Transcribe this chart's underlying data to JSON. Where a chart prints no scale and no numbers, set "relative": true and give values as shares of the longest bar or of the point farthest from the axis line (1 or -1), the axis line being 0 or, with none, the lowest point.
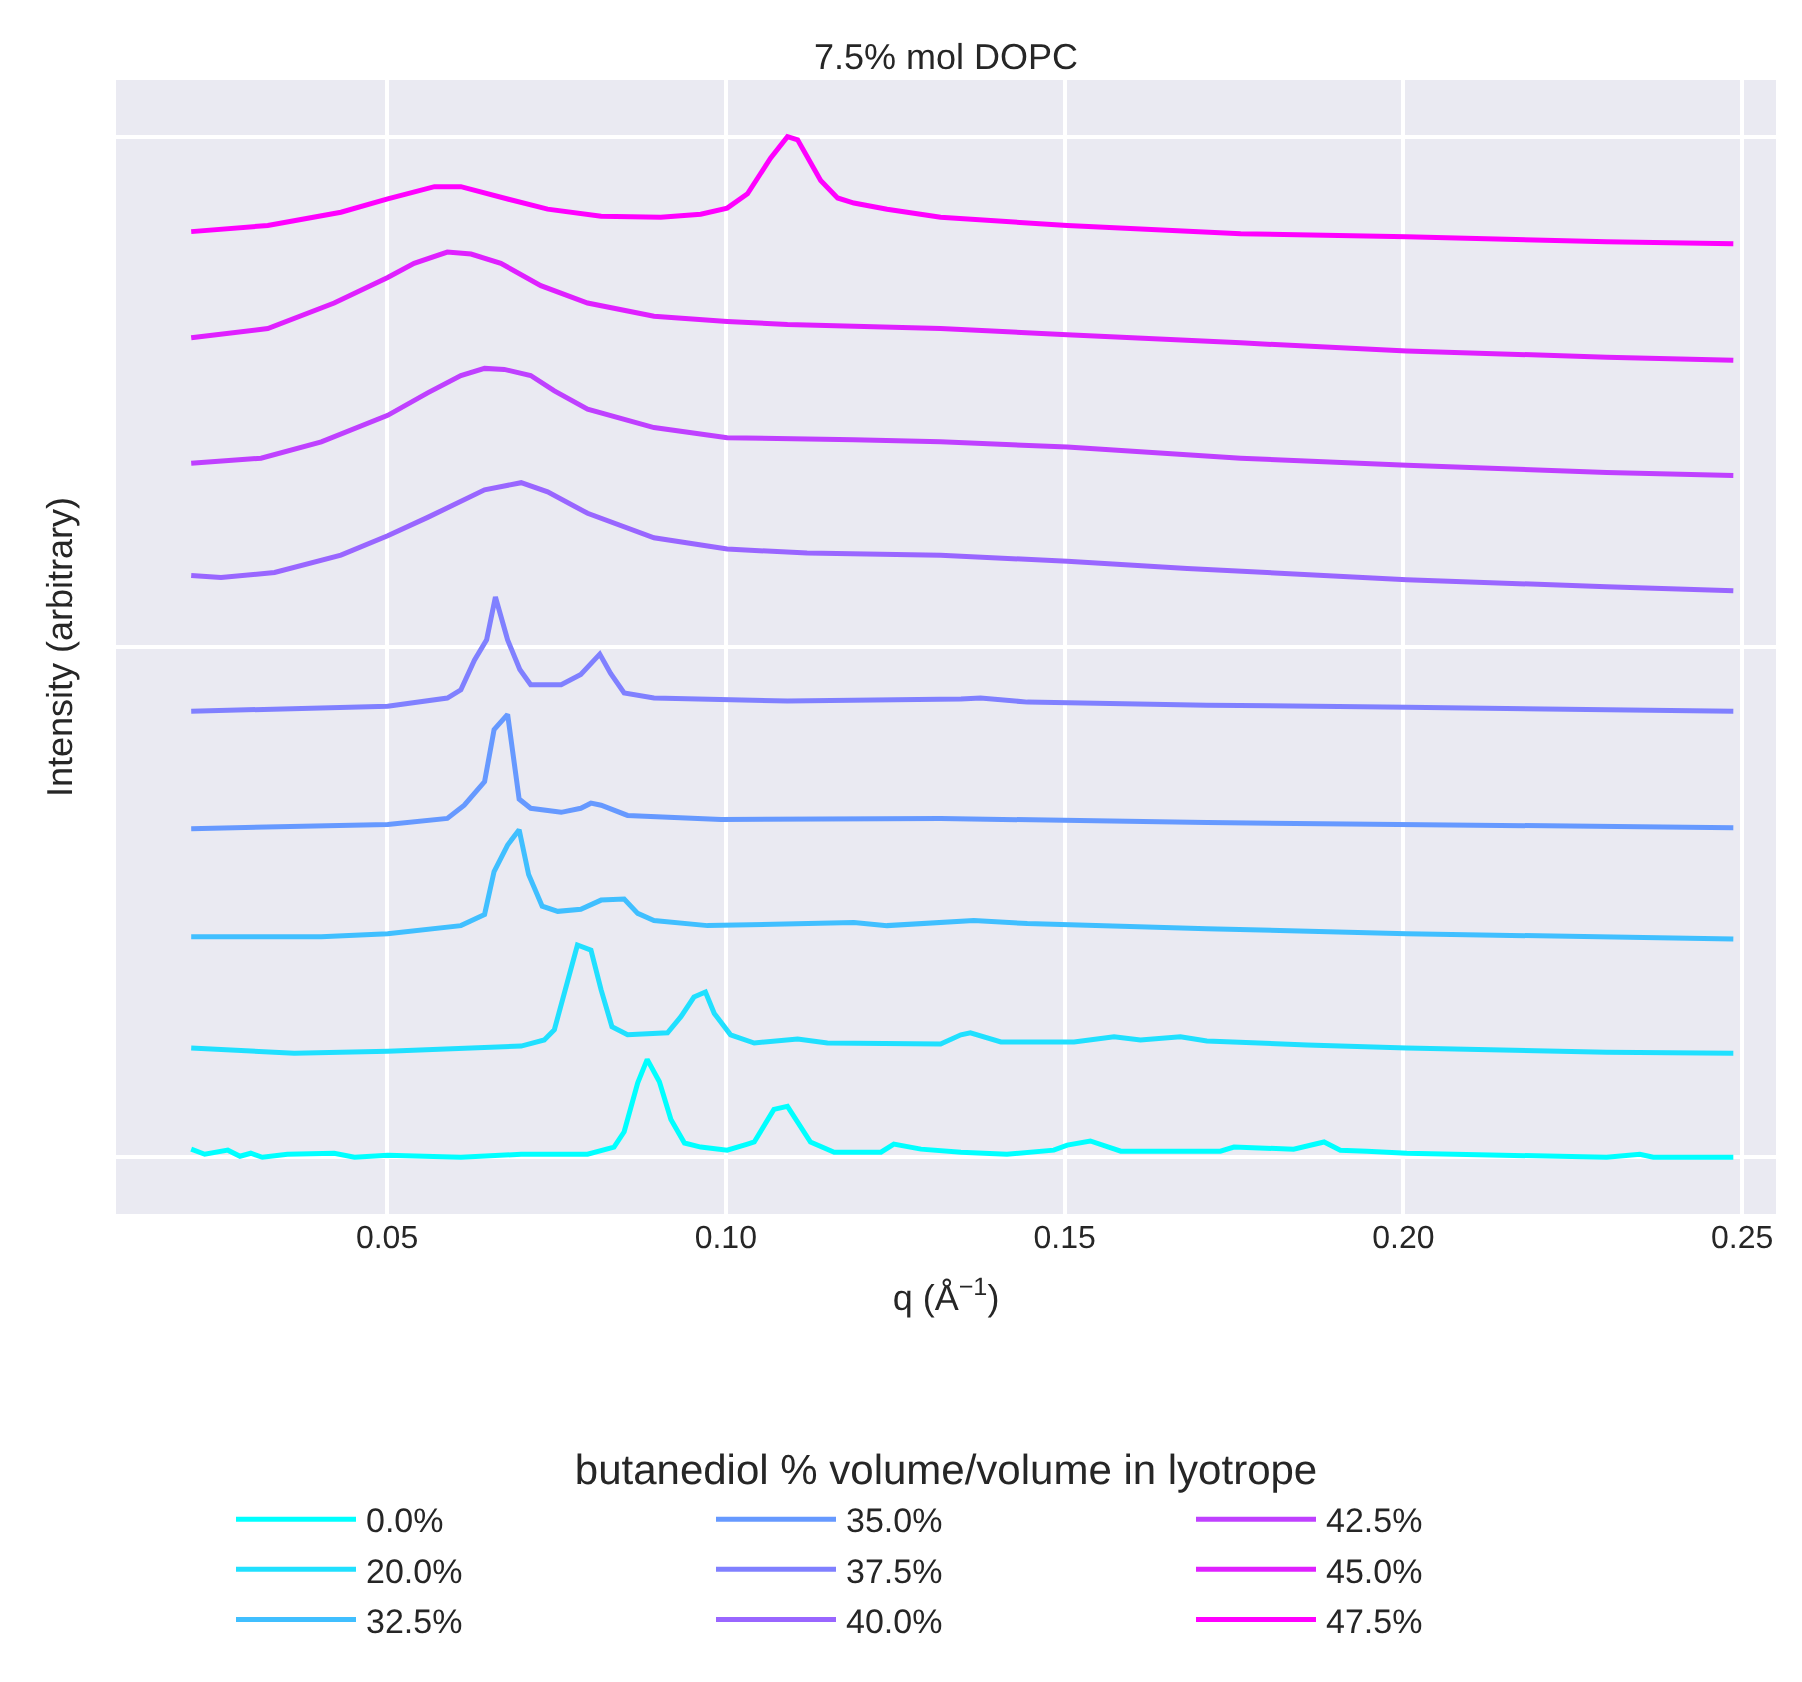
{
  "chart_data": {
    "type": "line",
    "title": "7.5% mol DOPC",
    "xlabel": "q (Å$^{−1}$)",
    "ylabel": "Intensity (arbitrary)",
    "legend_title": "butanediol % volume/volume in lyotrope",
    "relative": true,
    "xlim": [
      0.01,
      0.255
    ],
    "xticks": [
      0.05,
      {
        "value": 0.1,
        "label": "0.10"
      },
      0.15,
      {
        "value": 0.2,
        "label": "0.20"
      },
      0.25
    ],
    "grid": true,
    "legend": "bottom",
    "line_style": "solid",
    "marker": "none",
    "series": [
      {
        "name": "0.0%",
        "color": "#00ffff",
        "x": [
          0.0211,
          0.0231,
          0.0265,
          0.0283,
          0.0299,
          0.0316,
          0.0353,
          0.0422,
          0.0452,
          0.0501,
          0.0609,
          0.0698,
          0.0796,
          0.0835,
          0.085,
          0.087,
          0.0884,
          0.0902,
          0.0919,
          0.0939,
          0.0963,
          0.1002,
          0.1032,
          0.1042,
          0.1071,
          0.1091,
          0.1125,
          0.116,
          0.1229,
          0.1248,
          0.1288,
          0.1347,
          0.1415,
          0.1484,
          0.1504,
          0.1538,
          0.1583,
          0.173,
          0.175,
          0.1838,
          0.1883,
          0.1907,
          0.1946,
          0.2005,
          0.23,
          0.2349,
          0.2369,
          0.2487
        ],
        "values": [
          0.008,
          0.003,
          0.007,
          0.001,
          0.004,
          0,
          0.003,
          0.004,
          0,
          0.002,
          0,
          0.003,
          0.003,
          0.01,
          0.025,
          0.073,
          0.096,
          0.074,
          0.037,
          0.014,
          0.01,
          0.007,
          0.013,
          0.015,
          0.047,
          0.05,
          0.015,
          0.005,
          0.005,
          0.013,
          0.008,
          0.005,
          0.003,
          0.007,
          0.012,
          0.016,
          0.006,
          0.006,
          0.01,
          0.008,
          0.015,
          0.007,
          0.006,
          0.004,
          0,
          0.003,
          0,
          0
        ]
      },
      {
        "name": "20.0%",
        "color": "#20e0ff",
        "x": [
          0.0211,
          0.0363,
          0.0501,
          0.0698,
          0.0732,
          0.0747,
          0.0781,
          0.0801,
          0.0816,
          0.0832,
          0.0855,
          0.0914,
          0.0934,
          0.0953,
          0.097,
          0.0983,
          0.1007,
          0.1042,
          0.1106,
          0.115,
          0.1317,
          0.1347,
          0.1361,
          0.1406,
          0.1514,
          0.1573,
          0.1612,
          0.1671,
          0.171,
          0.1858,
          0.2005,
          0.23,
          0.2487
        ],
        "values": [
          0.107,
          0.102,
          0.104,
          0.109,
          0.115,
          0.125,
          0.208,
          0.203,
          0.164,
          0.128,
          0.12,
          0.122,
          0.138,
          0.157,
          0.162,
          0.141,
          0.12,
          0.112,
          0.116,
          0.112,
          0.111,
          0.12,
          0.122,
          0.113,
          0.113,
          0.118,
          0.115,
          0.118,
          0.114,
          0.11,
          0.107,
          0.103,
          0.102
        ]
      },
      {
        "name": "32.5%",
        "color": "#40bfff",
        "x": [
          0.0211,
          0.0403,
          0.0501,
          0.0609,
          0.0644,
          0.0658,
          0.0678,
          0.0695,
          0.0709,
          0.0729,
          0.0752,
          0.0786,
          0.0816,
          0.085,
          0.087,
          0.0894,
          0.0973,
          0.1189,
          0.1238,
          0.1366,
          0.1445,
          0.171,
          0.2005,
          0.2487
        ],
        "values": [
          0.216,
          0.216,
          0.219,
          0.227,
          0.238,
          0.28,
          0.306,
          0.321,
          0.277,
          0.246,
          0.241,
          0.243,
          0.252,
          0.253,
          0.239,
          0.232,
          0.227,
          0.23,
          0.227,
          0.232,
          0.229,
          0.224,
          0.219,
          0.214
        ]
      },
      {
        "name": "35.0%",
        "color": "#6699ff",
        "x": [
          0.0211,
          0.0501,
          0.0589,
          0.0614,
          0.0644,
          0.0658,
          0.0678,
          0.0695,
          0.0712,
          0.0757,
          0.0786,
          0.0801,
          0.0816,
          0.0855,
          0.0993,
          0.1317,
          0.171,
          0.2487
        ],
        "values": [
          0.322,
          0.326,
          0.332,
          0.345,
          0.368,
          0.419,
          0.434,
          0.351,
          0.342,
          0.338,
          0.342,
          0.347,
          0.345,
          0.335,
          0.331,
          0.332,
          0.328,
          0.323
        ]
      },
      {
        "name": "37.5%",
        "color": "#8080ff",
        "x": [
          0.0211,
          0.0501,
          0.0589,
          0.0609,
          0.0629,
          0.0647,
          0.066,
          0.0678,
          0.0696,
          0.0712,
          0.0757,
          0.0786,
          0.0814,
          0.083,
          0.085,
          0.0894,
          0.1091,
          0.1347,
          0.1376,
          0.1445,
          0.171,
          0.2005,
          0.2487
        ],
        "values": [
          0.437,
          0.442,
          0.45,
          0.458,
          0.487,
          0.507,
          0.549,
          0.507,
          0.478,
          0.463,
          0.463,
          0.473,
          0.493,
          0.474,
          0.455,
          0.45,
          0.447,
          0.449,
          0.45,
          0.446,
          0.443,
          0.441,
          0.437
        ]
      },
      {
        "name": "40.0%",
        "color": "#9966ff",
        "x": [
          0.0211,
          0.0255,
          0.0334,
          0.0432,
          0.0501,
          0.056,
          0.0644,
          0.0698,
          0.0737,
          0.0796,
          0.0894,
          0.1002,
          0.112,
          0.1317,
          0.1504,
          0.1681,
          0.2005,
          0.23,
          0.2487
        ],
        "values": [
          0.57,
          0.568,
          0.573,
          0.59,
          0.609,
          0.627,
          0.654,
          0.661,
          0.652,
          0.631,
          0.607,
          0.596,
          0.592,
          0.59,
          0.584,
          0.577,
          0.566,
          0.559,
          0.555
        ]
      },
      {
        "name": "42.5%",
        "color": "#bf40ff",
        "x": [
          0.0211,
          0.0314,
          0.0403,
          0.0501,
          0.056,
          0.0609,
          0.0644,
          0.0673,
          0.0712,
          0.0747,
          0.0796,
          0.0894,
          0.1002,
          0.1189,
          0.1317,
          0.1504,
          0.176,
          0.2005,
          0.23,
          0.2487
        ],
        "values": [
          0.68,
          0.685,
          0.701,
          0.727,
          0.749,
          0.766,
          0.773,
          0.772,
          0.766,
          0.751,
          0.733,
          0.715,
          0.705,
          0.703,
          0.701,
          0.696,
          0.685,
          0.678,
          0.671,
          0.668
        ]
      },
      {
        "name": "45.0%",
        "color": "#df20ff",
        "x": [
          0.0211,
          0.0324,
          0.0422,
          0.0501,
          0.054,
          0.0589,
          0.0624,
          0.0668,
          0.0727,
          0.0796,
          0.0894,
          0.1002,
          0.1091,
          0.1317,
          0.1504,
          0.176,
          0.2005,
          0.23,
          0.2487
        ],
        "values": [
          0.803,
          0.812,
          0.837,
          0.862,
          0.876,
          0.887,
          0.885,
          0.876,
          0.854,
          0.837,
          0.824,
          0.819,
          0.816,
          0.812,
          0.806,
          0.798,
          0.79,
          0.784,
          0.781
        ]
      },
      {
        "name": "47.5%",
        "color": "#ff00ff",
        "x": [
          0.0211,
          0.0324,
          0.0432,
          0.0501,
          0.057,
          0.0609,
          0.0678,
          0.0737,
          0.0816,
          0.0904,
          0.0963,
          0.1002,
          0.1032,
          0.1066,
          0.1091,
          0.1106,
          0.114,
          0.1165,
          0.1189,
          0.1238,
          0.1317,
          0.1504,
          0.176,
          0.2005,
          0.23,
          0.2487
        ],
        "values": [
          0.907,
          0.913,
          0.926,
          0.939,
          0.951,
          0.951,
          0.939,
          0.929,
          0.922,
          0.921,
          0.924,
          0.93,
          0.944,
          0.979,
          1.0,
          0.997,
          0.957,
          0.94,
          0.935,
          0.929,
          0.921,
          0.913,
          0.905,
          0.902,
          0.897,
          0.895
        ]
      }
    ]
  }
}
